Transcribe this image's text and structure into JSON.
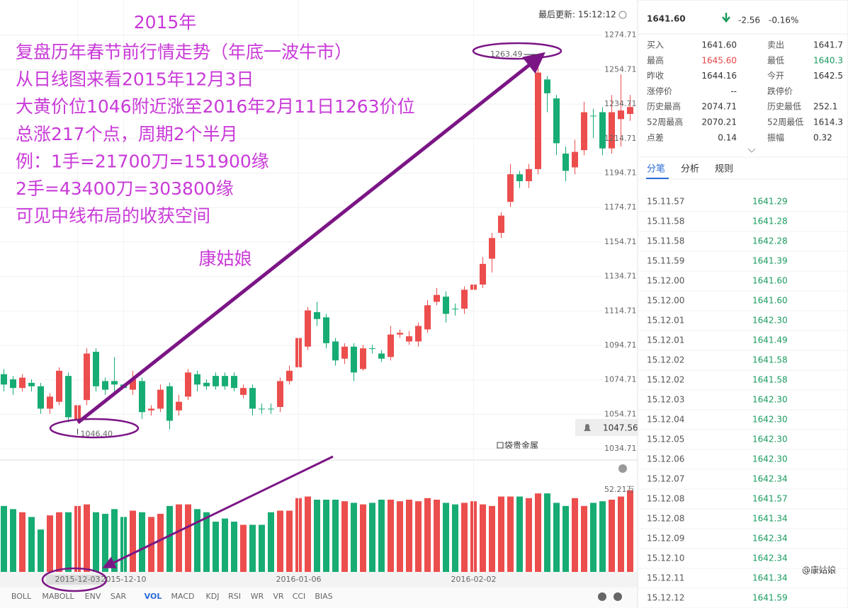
{
  "chart_data": {
    "type": "candlestick",
    "categories": [
      null,
      null,
      null,
      null,
      null,
      null,
      null,
      null,
      "2015-12-03",
      null,
      null,
      null,
      null,
      "2015-12-10",
      null,
      null,
      null,
      null,
      null,
      null,
      null,
      null,
      null,
      null,
      null,
      null,
      null,
      null,
      null,
      null,
      null,
      null,
      "2016-01-06",
      null,
      null,
      null,
      null,
      null,
      null,
      null,
      null,
      null,
      null,
      null,
      null,
      null,
      null,
      null,
      null,
      null,
      null,
      "2016-02-02",
      null,
      null,
      null,
      null,
      null,
      null,
      null,
      null,
      null,
      null,
      null,
      null,
      null,
      null,
      null,
      null,
      null
    ],
    "open": [
      1078,
      1075,
      1070,
      1073,
      1071,
      1058,
      1062,
      1077,
      1052,
      1063,
      1091,
      1074,
      1074,
      1072,
      1069,
      1074,
      1057,
      1058,
      1071,
      1057,
      1065,
      1078,
      1073,
      1077,
      1077,
      1077,
      1066,
      1070,
      1058,
      1058,
      1059,
      1074,
      1082,
      1094,
      1114,
      1111,
      1097,
      1087,
      1094,
      1081,
      1093,
      1090,
      1088,
      1101,
      1097,
      1097,
      1104,
      1120,
      1123,
      1116,
      1116,
      1127,
      1130,
      1145,
      1160,
      1178,
      1194,
      1190,
      1197,
      1249,
      1238,
      1206,
      1198,
      1208,
      1228,
      1230,
      1209,
      1226,
      1229
    ],
    "high": [
      1081,
      1077,
      1078,
      1075,
      1073,
      1067,
      1082,
      1079,
      1062,
      1093,
      1093,
      1076,
      1088,
      1075,
      1080,
      1076,
      1060,
      1072,
      1073,
      1066,
      1081,
      1080,
      1075,
      1079,
      1079,
      1079,
      1072,
      1072,
      1061,
      1061,
      1076,
      1083,
      1101,
      1117,
      1120,
      1113,
      1099,
      1096,
      1096,
      1095,
      1095,
      1092,
      1106,
      1104,
      1103,
      1108,
      1121,
      1128,
      1126,
      1119,
      1129,
      1133,
      1146,
      1160,
      1172,
      1200,
      1196,
      1200,
      1263.49,
      1251,
      1240,
      1210,
      1214,
      1236,
      1232,
      1233,
      1240,
      1252,
      1240
    ],
    "low": [
      1068,
      1066,
      1068,
      1068,
      1055,
      1055,
      1060,
      1050,
      1046.4,
      1060,
      1068,
      1066,
      1068,
      1066,
      1066,
      1052,
      1054,
      1056,
      1046,
      1054,
      1063,
      1068,
      1069,
      1069,
      1069,
      1068,
      1064,
      1054,
      1055,
      1055,
      1056,
      1072,
      1080,
      1092,
      1106,
      1093,
      1083,
      1084,
      1074,
      1080,
      1090,
      1085,
      1086,
      1099,
      1095,
      1094,
      1102,
      1118,
      1108,
      1112,
      1113,
      1124,
      1128,
      1137,
      1157,
      1175,
      1186,
      1186,
      1194,
      1230,
      1205,
      1190,
      1194,
      1205,
      1215,
      1205,
      1206,
      1210,
      1225
    ],
    "close": [
      1072,
      1070,
      1076,
      1071,
      1058,
      1065,
      1080,
      1053,
      1060,
      1090,
      1071,
      1069,
      1072,
      1070,
      1075,
      1056,
      1058,
      1069,
      1051,
      1062,
      1079,
      1072,
      1071,
      1071,
      1071,
      1070,
      1070,
      1058,
      1058,
      1058,
      1074,
      1080,
      1099,
      1115,
      1110,
      1096,
      1086,
      1094,
      1079,
      1093,
      1093,
      1087,
      1101,
      1102,
      1100,
      1106,
      1118,
      1124,
      1113,
      1116,
      1127,
      1130,
      1142,
      1157,
      1170,
      1194,
      1190,
      1197,
      1253,
      1241,
      1212,
      1196,
      1207,
      1230,
      1228,
      1209,
      1230,
      1231,
      1233
    ],
    "up_color": "#ec4d4d",
    "down_color": "#17ac73",
    "ylim": [
      1029,
      1291
    ],
    "yticks": [
      1274.71,
      1254.71,
      1234.71,
      1214.71,
      1194.71,
      1174.71,
      1154.71,
      1134.71,
      1114.71,
      1094.71,
      1074.71,
      1054.71,
      1034.71
    ],
    "grid": true,
    "high_label": 1263.49,
    "low_label": {
      "value": 1046.4,
      "label": "1046.40"
    },
    "current_price": 1047.56,
    "last_update": "最后更新: 15:12:12",
    "volume": {
      "values": [
        42,
        40,
        38,
        35,
        27,
        36,
        38,
        38,
        42,
        43,
        38,
        37,
        40,
        35,
        39,
        38,
        35,
        37,
        42,
        43,
        43,
        40,
        38,
        32,
        34,
        32,
        30,
        30,
        30,
        38,
        39,
        39,
        47,
        48,
        46,
        46,
        46,
        45,
        44,
        43,
        44,
        46,
        46,
        45,
        46,
        45,
        47,
        46,
        44,
        43,
        44,
        45,
        43,
        42,
        48,
        48,
        48,
        47,
        50,
        50,
        44,
        42,
        47,
        42,
        44,
        45,
        46,
        48,
        52
      ],
      "ylim": [
        0,
        55
      ],
      "yticks": [
        {
          "value": 52.21,
          "label": "52.21万"
        }
      ]
    },
    "indicators": [
      "BOLL",
      "MABOLL",
      "ENV",
      "SAR",
      "VOL",
      "MACD",
      "KDJ",
      "RSI",
      "WR",
      "VR",
      "CCI",
      "BIAS"
    ]
  },
  "annotation": {
    "title": "2015年",
    "lines": [
      "复盘历年春节前行情走势（年底一波牛市）",
      "从日线图来看2015年12月3日",
      "大黄价位1046附近涨至2016年2月11日1263价位",
      "总涨217个点，周期2个半月",
      "例：1手=21700刀=151900缘",
      "       2手=43400刀=303800缘",
      "可见中线布局的收获空间"
    ],
    "signature": "康姑娘"
  },
  "quote": {
    "price": "1641.60",
    "change": "-2.56",
    "change_pct": "-0.16%",
    "rows": [
      [
        "买入",
        "1641.60",
        "卖出",
        "1641.7"
      ],
      [
        "最高",
        "1645.60",
        "最低",
        "1640.3"
      ],
      [
        "昨收",
        "1644.16",
        "今开",
        "1642.5"
      ],
      [
        "涨停价",
        "--",
        "跌停价",
        ""
      ],
      [
        "历史最高",
        "2074.71",
        "历史最低",
        "252.1"
      ],
      [
        "52周最高",
        "2070.21",
        "52周最低",
        "1614.3"
      ],
      [
        "点差",
        "0.14",
        "振幅",
        "0.32"
      ]
    ],
    "tabs": [
      "分笔",
      "分析",
      "规则"
    ]
  },
  "ticks": [
    [
      "15.11.57",
      "1641.29"
    ],
    [
      "15.11.58",
      "1641.28"
    ],
    [
      "15.11.58",
      "1642.28"
    ],
    [
      "15.11.59",
      "1641.39"
    ],
    [
      "15.12.00",
      "1641.60"
    ],
    [
      "15.12.00",
      "1641.60"
    ],
    [
      "15.12.01",
      "1642.30"
    ],
    [
      "15.12.01",
      "1641.49"
    ],
    [
      "15.12.02",
      "1641.58"
    ],
    [
      "15.12.02",
      "1641.58"
    ],
    [
      "15.12.03",
      "1642.30"
    ],
    [
      "15.12.04",
      "1642.30"
    ],
    [
      "15.12.05",
      "1642.30"
    ],
    [
      "15.12.06",
      "1642.30"
    ],
    [
      "15.12.07",
      "1642.34"
    ],
    [
      "15.12.08",
      "1641.57"
    ],
    [
      "15.12.08",
      "1641.34"
    ],
    [
      "15.12.09",
      "1642.34"
    ],
    [
      "15.12.10",
      "1642.34"
    ],
    [
      "15.12.11",
      "1641.34"
    ],
    [
      "15.12.12",
      "1641.59"
    ]
  ],
  "watermark": "@康姑娘"
}
